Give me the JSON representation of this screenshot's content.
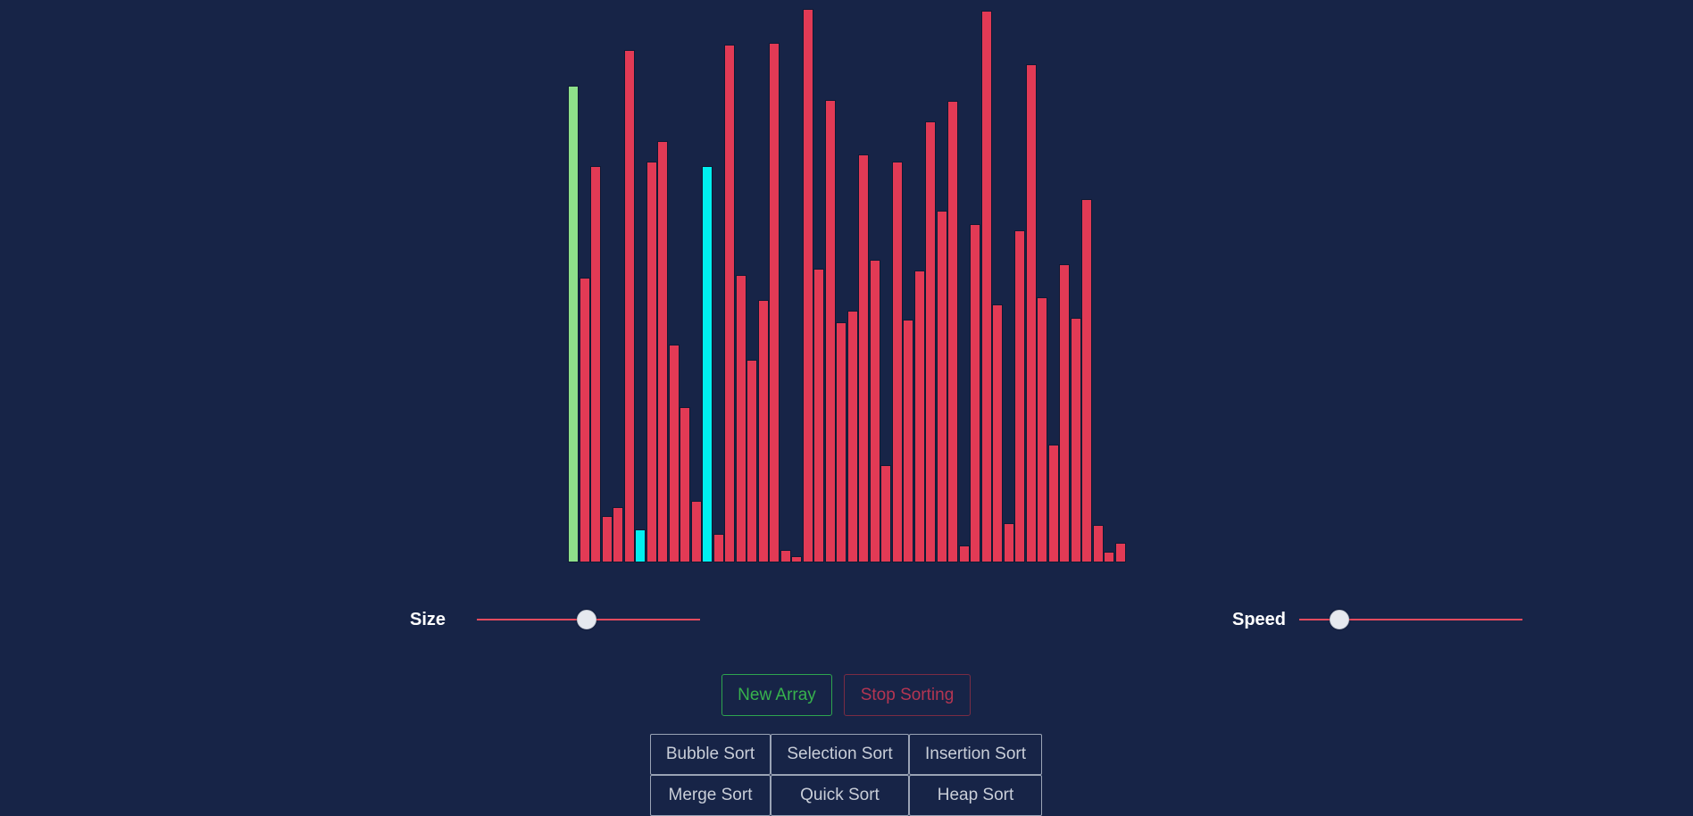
{
  "bars": {
    "colors": {
      "default": "#e23a55",
      "sorted": "#8ee08a",
      "compare": "#00f0f0"
    },
    "values": [
      {
        "v": 534,
        "s": "sorted"
      },
      {
        "v": 319,
        "s": "default"
      },
      {
        "v": 444,
        "s": "default"
      },
      {
        "v": 52,
        "s": "default"
      },
      {
        "v": 62,
        "s": "default"
      },
      {
        "v": 574,
        "s": "default"
      },
      {
        "v": 37,
        "s": "compare"
      },
      {
        "v": 449,
        "s": "default"
      },
      {
        "v": 472,
        "s": "default"
      },
      {
        "v": 244,
        "s": "default"
      },
      {
        "v": 174,
        "s": "default"
      },
      {
        "v": 69,
        "s": "default"
      },
      {
        "v": 444,
        "s": "compare"
      },
      {
        "v": 32,
        "s": "default"
      },
      {
        "v": 580,
        "s": "default"
      },
      {
        "v": 322,
        "s": "default"
      },
      {
        "v": 227,
        "s": "default"
      },
      {
        "v": 294,
        "s": "default"
      },
      {
        "v": 582,
        "s": "default"
      },
      {
        "v": 14,
        "s": "default"
      },
      {
        "v": 7,
        "s": "default"
      },
      {
        "v": 620,
        "s": "default"
      },
      {
        "v": 329,
        "s": "default"
      },
      {
        "v": 518,
        "s": "default"
      },
      {
        "v": 269,
        "s": "default"
      },
      {
        "v": 282,
        "s": "default"
      },
      {
        "v": 457,
        "s": "default"
      },
      {
        "v": 339,
        "s": "default"
      },
      {
        "v": 109,
        "s": "default"
      },
      {
        "v": 449,
        "s": "default"
      },
      {
        "v": 272,
        "s": "default"
      },
      {
        "v": 327,
        "s": "default"
      },
      {
        "v": 494,
        "s": "default"
      },
      {
        "v": 394,
        "s": "default"
      },
      {
        "v": 517,
        "s": "default"
      },
      {
        "v": 19,
        "s": "default"
      },
      {
        "v": 379,
        "s": "default"
      },
      {
        "v": 618,
        "s": "default"
      },
      {
        "v": 289,
        "s": "default"
      },
      {
        "v": 44,
        "s": "default"
      },
      {
        "v": 372,
        "s": "default"
      },
      {
        "v": 558,
        "s": "default"
      },
      {
        "v": 297,
        "s": "default"
      },
      {
        "v": 132,
        "s": "default"
      },
      {
        "v": 334,
        "s": "default"
      },
      {
        "v": 274,
        "s": "default"
      },
      {
        "v": 407,
        "s": "default"
      },
      {
        "v": 42,
        "s": "default"
      },
      {
        "v": 12,
        "s": "default"
      },
      {
        "v": 22,
        "s": "default"
      }
    ]
  },
  "controls": {
    "size_label": "Size",
    "size_value": 0.49,
    "speed_label": "Speed",
    "speed_value": 0.18,
    "track_color": "#e34b5e"
  },
  "buttons": {
    "new_array": "New Array",
    "stop_sorting": "Stop Sorting",
    "bubble_sort": "Bubble Sort",
    "selection_sort": "Selection Sort",
    "insertion_sort": "Insertion Sort",
    "merge_sort": "Merge Sort",
    "quick_sort": "Quick Sort",
    "heap_sort": "Heap Sort"
  }
}
